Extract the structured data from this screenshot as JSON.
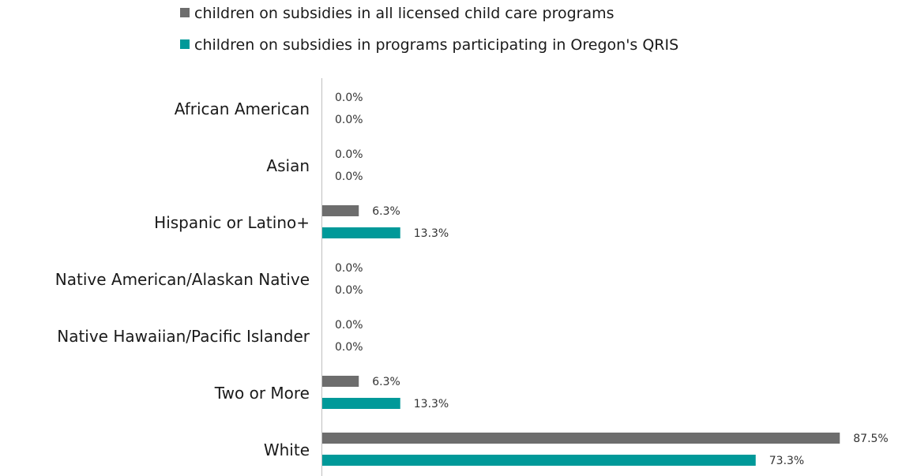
{
  "chart_data": {
    "type": "bar",
    "orientation": "horizontal",
    "categories": [
      "African American",
      "Asian",
      "Hispanic or Latino+",
      "Native American/Alaskan Native",
      "Native Hawaiian/Pacific Islander",
      "Two or More",
      "White"
    ],
    "series": [
      {
        "name": "children on subsidies in all licensed child care programs",
        "color": "#6d6d6d",
        "values": [
          0.0,
          0.0,
          6.3,
          0.0,
          0.0,
          6.3,
          87.5
        ],
        "labels": [
          "0.0%",
          "0.0%",
          "6.3%",
          "0.0%",
          "0.0%",
          "6.3%",
          "87.5%"
        ]
      },
      {
        "name": "children on subsidies in programs participating in Oregon's QRIS",
        "color": "#009999",
        "values": [
          0.0,
          0.0,
          13.3,
          0.0,
          0.0,
          13.3,
          73.3
        ],
        "labels": [
          "0.0%",
          "0.0%",
          "13.3%",
          "0.0%",
          "0.0%",
          "13.3%",
          "73.3%"
        ]
      }
    ],
    "value_unit": "%",
    "xlim": [
      0,
      100
    ],
    "legend_position": "top",
    "grid": false
  }
}
